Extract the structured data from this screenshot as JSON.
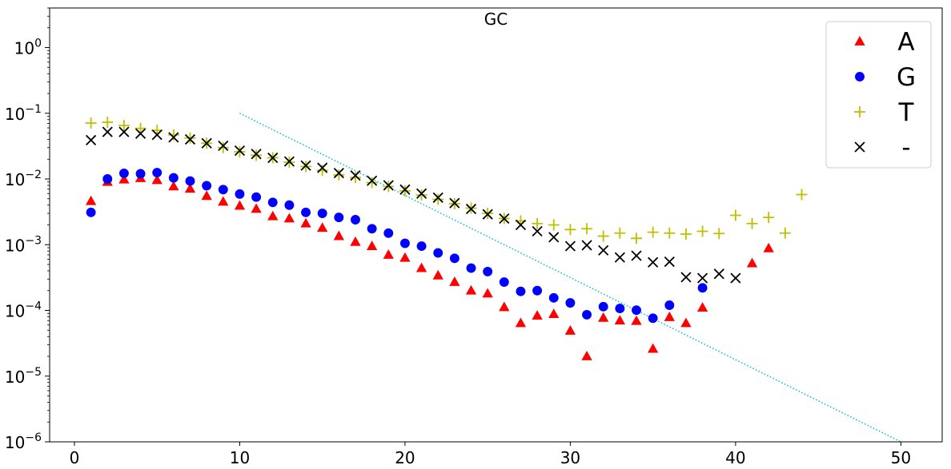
{
  "chart_data": {
    "type": "scatter",
    "title": "GC",
    "xlabel": "",
    "ylabel": "",
    "xlim": [
      -1.5,
      52.5
    ],
    "ylim": [
      1e-06,
      4
    ],
    "yscale": "log",
    "x_ticks": [
      "0",
      "10",
      "20",
      "30",
      "40",
      "50"
    ],
    "x_tick_values": [
      0,
      10,
      20,
      30,
      40,
      50
    ],
    "y_tick_exponents": [
      0,
      -1,
      -2,
      -3,
      -4,
      -5,
      -6
    ],
    "legend_placement": "top-right",
    "series": [
      {
        "name": "A",
        "marker": "triangle",
        "color": "#ff0000",
        "x": [
          1,
          2,
          3,
          4,
          5,
          6,
          7,
          8,
          9,
          10,
          11,
          12,
          13,
          14,
          15,
          16,
          17,
          18,
          19,
          20,
          21,
          22,
          23,
          24,
          25,
          26,
          27,
          28,
          29,
          30,
          31,
          32,
          33,
          34,
          35,
          36,
          37,
          38,
          41,
          42
        ],
        "y": [
          0.0046,
          0.009,
          0.0098,
          0.0103,
          0.0096,
          0.0077,
          0.0071,
          0.0055,
          0.0045,
          0.0039,
          0.0035,
          0.0027,
          0.0025,
          0.0021,
          0.0018,
          0.00135,
          0.0011,
          0.00095,
          0.0007,
          0.00063,
          0.00044,
          0.00034,
          0.00027,
          0.0002,
          0.00018,
          0.000112,
          6.4e-05,
          8.3e-05,
          8.8e-05,
          4.9e-05,
          2e-05,
          7.7e-05,
          7e-05,
          6.9e-05,
          2.6e-05,
          7.9e-05,
          6.4e-05,
          0.00011,
          0.00052,
          0.00088
        ]
      },
      {
        "name": "G",
        "marker": "circle",
        "color": "#0000ff",
        "x": [
          1,
          2,
          3,
          4,
          5,
          6,
          7,
          8,
          9,
          10,
          11,
          12,
          13,
          14,
          15,
          16,
          17,
          18,
          19,
          20,
          21,
          22,
          23,
          24,
          25,
          26,
          27,
          28,
          29,
          30,
          31,
          32,
          33,
          34,
          35,
          36,
          38
        ],
        "y": [
          0.0031,
          0.01,
          0.0122,
          0.012,
          0.0125,
          0.0104,
          0.0093,
          0.0079,
          0.0069,
          0.0059,
          0.0053,
          0.0044,
          0.004,
          0.0031,
          0.003,
          0.0026,
          0.0024,
          0.00175,
          0.0015,
          0.00105,
          0.00095,
          0.00075,
          0.00062,
          0.00044,
          0.00039,
          0.00027,
          0.000195,
          0.0002,
          0.000155,
          0.00013,
          8.6e-05,
          0.000114,
          0.000107,
          0.000101,
          7.6e-05,
          0.00012,
          0.00022
        ]
      },
      {
        "name": "T",
        "marker": "plus",
        "color": "#bfbf00",
        "x": [
          1,
          2,
          3,
          4,
          5,
          6,
          7,
          8,
          9,
          10,
          11,
          12,
          13,
          14,
          15,
          16,
          17,
          18,
          19,
          20,
          21,
          22,
          23,
          24,
          25,
          26,
          27,
          28,
          29,
          30,
          31,
          32,
          33,
          34,
          35,
          36,
          37,
          38,
          39,
          40,
          41,
          42,
          43,
          44
        ],
        "y": [
          0.071,
          0.073,
          0.065,
          0.059,
          0.055,
          0.047,
          0.042,
          0.035,
          0.03,
          0.026,
          0.023,
          0.021,
          0.018,
          0.0155,
          0.0135,
          0.0115,
          0.0105,
          0.0088,
          0.0077,
          0.0066,
          0.0057,
          0.0049,
          0.0042,
          0.0036,
          0.003,
          0.0025,
          0.0023,
          0.0021,
          0.002,
          0.0017,
          0.00175,
          0.00135,
          0.0015,
          0.00125,
          0.00155,
          0.0015,
          0.00145,
          0.0016,
          0.00148,
          0.0028,
          0.0021,
          0.0026,
          0.0015,
          0.0058
        ]
      },
      {
        "name": "-",
        "marker": "x",
        "color": "#000000",
        "x": [
          1,
          2,
          3,
          4,
          5,
          6,
          7,
          8,
          9,
          10,
          11,
          12,
          13,
          14,
          15,
          16,
          17,
          18,
          19,
          20,
          21,
          22,
          23,
          24,
          25,
          26,
          27,
          28,
          29,
          30,
          31,
          32,
          33,
          34,
          35,
          36,
          37,
          38,
          39,
          40
        ],
        "y": [
          0.039,
          0.052,
          0.052,
          0.049,
          0.047,
          0.043,
          0.04,
          0.035,
          0.032,
          0.027,
          0.024,
          0.021,
          0.0185,
          0.016,
          0.0148,
          0.0123,
          0.0113,
          0.0094,
          0.008,
          0.0069,
          0.006,
          0.0052,
          0.0043,
          0.0035,
          0.0029,
          0.0025,
          0.002,
          0.0016,
          0.0013,
          0.00095,
          0.00098,
          0.00082,
          0.00064,
          0.00068,
          0.00054,
          0.00055,
          0.00032,
          0.00031,
          0.00036,
          0.00031
        ]
      }
    ],
    "reference_line": {
      "color": "#00bfbf",
      "style": "dotted",
      "x": [
        10,
        50
      ],
      "y": [
        0.1,
        1e-06
      ]
    }
  }
}
